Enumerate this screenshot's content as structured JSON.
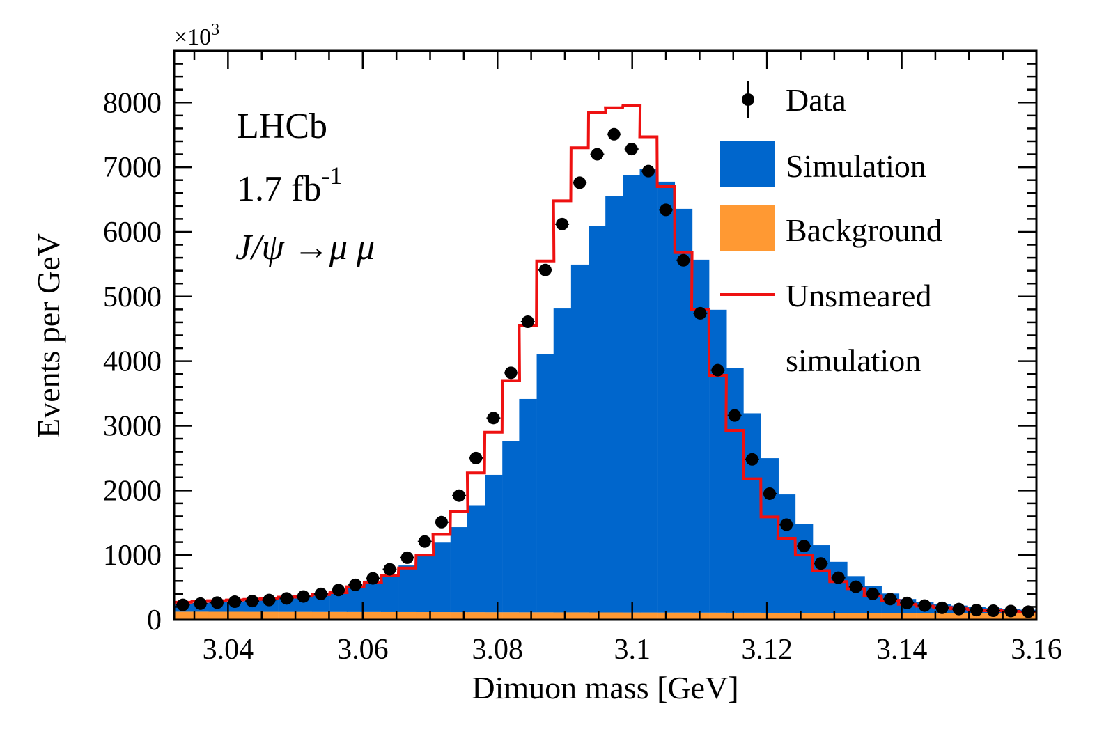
{
  "chart_data": {
    "type": "histogram",
    "title": "",
    "xlabel": "Dimuon mass [GeV]",
    "ylabel": "Events per GeV",
    "y_multiplier": "×10",
    "y_multiplier_exp": "3",
    "xlim": [
      3.032,
      3.16
    ],
    "ylim": [
      0,
      8800
    ],
    "x_ticks": [
      3.04,
      3.06,
      3.08,
      3.1,
      3.12,
      3.14,
      3.16
    ],
    "x_tick_labels": [
      "3.04",
      "3.06",
      "3.08",
      "3.1",
      "3.12",
      "3.14",
      "3.16"
    ],
    "y_ticks": [
      0,
      1000,
      2000,
      3000,
      4000,
      5000,
      6000,
      7000,
      8000
    ],
    "y_tick_labels": [
      "0",
      "1000",
      "2000",
      "3000",
      "4000",
      "5000",
      "6000",
      "7000",
      "8000"
    ],
    "bin_width": 0.00256,
    "bin_centers": [
      3.0333,
      3.0359,
      3.0384,
      3.041,
      3.0436,
      3.0461,
      3.0487,
      3.0512,
      3.0538,
      3.0564,
      3.0589,
      3.0615,
      3.064,
      3.0666,
      3.0692,
      3.0717,
      3.0743,
      3.0768,
      3.0794,
      3.082,
      3.0845,
      3.0871,
      3.0896,
      3.0922,
      3.0948,
      3.0973,
      3.0999,
      3.1024,
      3.105,
      3.1076,
      3.1101,
      3.1127,
      3.1152,
      3.1178,
      3.1204,
      3.1229,
      3.1255,
      3.128,
      3.1306,
      3.1332,
      3.1357,
      3.1383,
      3.1408,
      3.1434,
      3.146,
      3.1485,
      3.1511,
      3.1536,
      3.1562,
      3.1588
    ],
    "series": [
      {
        "name": "Background",
        "kind": "stacked-fill",
        "color": "#FF9933",
        "values": [
          125,
          125,
          124,
          124,
          123,
          123,
          122,
          122,
          121,
          121,
          120,
          120,
          119,
          119,
          118,
          118,
          117,
          117,
          116,
          116,
          115,
          115,
          114,
          114,
          113,
          113,
          112,
          112,
          111,
          111,
          110,
          110,
          109,
          109,
          108,
          108,
          107,
          107,
          106,
          106,
          105,
          105,
          104,
          104,
          103,
          103,
          102,
          102,
          101,
          101
        ]
      },
      {
        "name": "Simulation",
        "kind": "stacked-fill",
        "color": "#0066CC",
        "values": [
          120,
          133,
          148,
          158,
          170,
          186,
          206,
          228,
          261,
          315,
          403,
          485,
          585,
          720,
          885,
          1075,
          1315,
          1655,
          2125,
          2650,
          3300,
          3995,
          4700,
          5380,
          5975,
          6445,
          6770,
          6865,
          6665,
          6245,
          5460,
          4685,
          3785,
          3085,
          2390,
          1830,
          1370,
          1045,
          790,
          569,
          419,
          301,
          217,
          174,
          138,
          116,
          94,
          79,
          62,
          54
        ]
      },
      {
        "name": "Unsmeared simulation",
        "kind": "step-line",
        "color": "#EE1111",
        "values": [
          270,
          285,
          295,
          305,
          315,
          330,
          350,
          365,
          390,
          420,
          510,
          580,
          680,
          800,
          1000,
          1320,
          1680,
          2270,
          2900,
          3700,
          4550,
          5550,
          6480,
          7300,
          7850,
          7920,
          7950,
          7470,
          6700,
          5680,
          4800,
          3780,
          2930,
          2180,
          1590,
          1260,
          1000,
          760,
          590,
          480,
          370,
          300,
          240,
          210,
          190,
          170,
          150,
          140,
          130,
          120
        ]
      },
      {
        "name": "Data",
        "kind": "points-with-errors",
        "color": "#000000",
        "values": [
          230,
          250,
          265,
          280,
          290,
          305,
          330,
          360,
          400,
          460,
          540,
          640,
          780,
          960,
          1210,
          1510,
          1920,
          2500,
          3120,
          3820,
          4610,
          5410,
          6120,
          6760,
          7200,
          7510,
          7280,
          6940,
          6340,
          5560,
          4740,
          3860,
          3160,
          2480,
          1950,
          1470,
          1140,
          870,
          650,
          510,
          400,
          320,
          260,
          220,
          185,
          165,
          150,
          140,
          135,
          125
        ]
      }
    ],
    "legend": {
      "placement": "top-right",
      "entries": [
        "Data",
        "Simulation",
        "Background",
        "Unsmeared",
        "simulation"
      ]
    },
    "annotations": {
      "experiment": "LHCb",
      "luminosity": "1.7 fb",
      "luminosity_exp": "-1",
      "decay_j": "J",
      "decay_slash": "/",
      "decay_psi": "ψ",
      "decay_arrow": " →",
      "decay_mumu": "μ μ"
    }
  }
}
